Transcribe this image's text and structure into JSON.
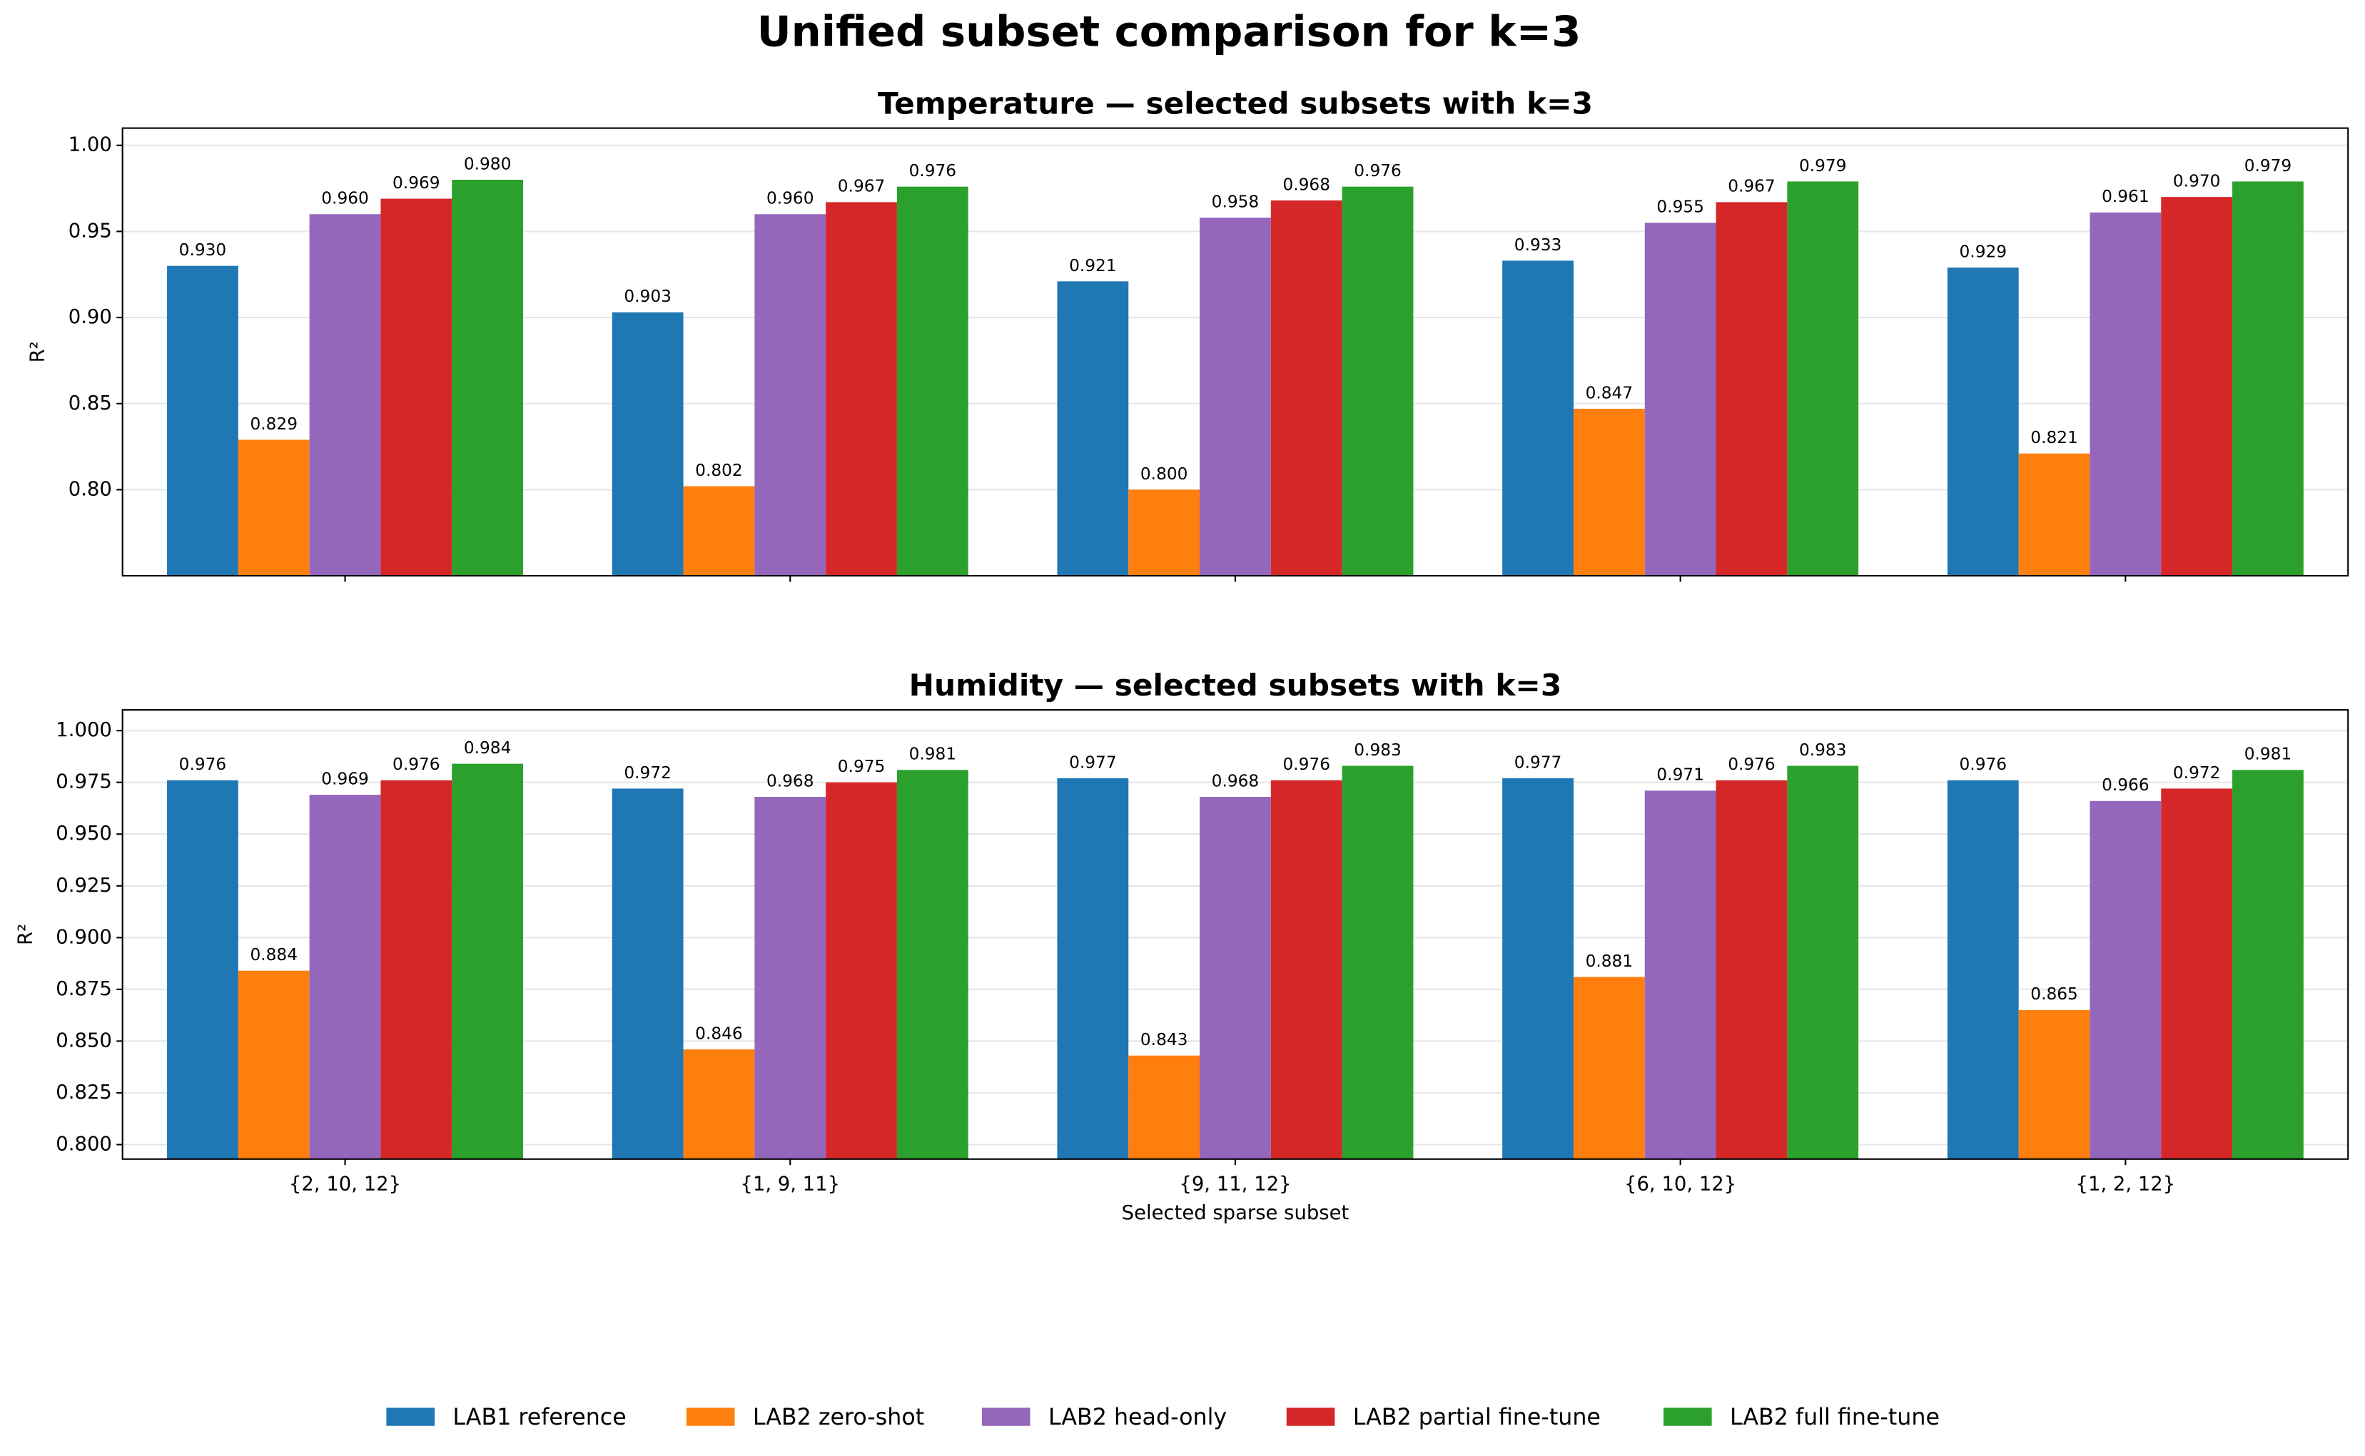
{
  "title": "Unified subset comparison for k=3",
  "chart_data": [
    {
      "type": "bar",
      "title": "Temperature — selected subsets with k=3",
      "ylabel": "R²",
      "categories": [
        null,
        null,
        null,
        null,
        null
      ],
      "ylim": [
        0.75,
        1.01
      ],
      "yticks": [
        {
          "value": 0.8,
          "label": "0.80"
        },
        {
          "value": 0.85,
          "label": "0.85"
        },
        {
          "value": 0.9,
          "label": "0.90"
        },
        {
          "value": 0.95,
          "label": "0.95"
        },
        {
          "value": 1.0,
          "label": "1.00"
        }
      ],
      "grid": true,
      "legend": "lower center",
      "series": [
        {
          "name": "LAB1 reference",
          "color": "#1f77b4",
          "values": [
            0.93,
            0.903,
            0.921,
            0.933,
            0.929
          ],
          "value_labels": [
            "0.930",
            "0.903",
            "0.921",
            "0.933",
            "0.929"
          ]
        },
        {
          "name": "LAB2 zero-shot",
          "color": "#ff7f0e",
          "values": [
            0.829,
            0.802,
            0.8,
            0.847,
            0.821
          ],
          "value_labels": [
            "0.829",
            "0.802",
            "0.800",
            "0.847",
            "0.821"
          ]
        },
        {
          "name": "LAB2 head-only",
          "color": "#9467bd",
          "values": [
            0.96,
            0.96,
            0.958,
            0.955,
            0.961
          ],
          "value_labels": [
            "0.960",
            "0.960",
            "0.958",
            "0.955",
            "0.961"
          ]
        },
        {
          "name": "LAB2 partial fine-tune",
          "color": "#d62728",
          "values": [
            0.969,
            0.967,
            0.968,
            0.967,
            0.97
          ],
          "value_labels": [
            "0.969",
            "0.967",
            "0.968",
            "0.967",
            "0.970"
          ]
        },
        {
          "name": "LAB2 full fine-tune",
          "color": "#2ca02c",
          "values": [
            0.98,
            0.976,
            0.976,
            0.979,
            0.979
          ],
          "value_labels": [
            "0.980",
            "0.976",
            "0.976",
            "0.979",
            "0.979"
          ]
        }
      ]
    },
    {
      "type": "bar",
      "title": "Humidity — selected subsets with k=3",
      "ylabel": "R²",
      "xlabel": "Selected sparse subset",
      "categories": [
        "{2, 10, 12}",
        "{1, 9, 11}",
        "{9, 11, 12}",
        "{6, 10, 12}",
        "{1, 2, 12}"
      ],
      "ylim": [
        0.793,
        1.01
      ],
      "yticks": [
        {
          "value": 0.8,
          "label": "0.800"
        },
        {
          "value": 0.825,
          "label": "0.825"
        },
        {
          "value": 0.85,
          "label": "0.850"
        },
        {
          "value": 0.875,
          "label": "0.875"
        },
        {
          "value": 0.9,
          "label": "0.900"
        },
        {
          "value": 0.925,
          "label": "0.925"
        },
        {
          "value": 0.95,
          "label": "0.950"
        },
        {
          "value": 0.975,
          "label": "0.975"
        },
        {
          "value": 1.0,
          "label": "1.000"
        }
      ],
      "grid": true,
      "series": [
        {
          "name": "LAB1 reference",
          "color": "#1f77b4",
          "values": [
            0.976,
            0.972,
            0.977,
            0.977,
            0.976
          ],
          "value_labels": [
            "0.976",
            "0.972",
            "0.977",
            "0.977",
            "0.976"
          ]
        },
        {
          "name": "LAB2 zero-shot",
          "color": "#ff7f0e",
          "values": [
            0.884,
            0.846,
            0.843,
            0.881,
            0.865
          ],
          "value_labels": [
            "0.884",
            "0.846",
            "0.843",
            "0.881",
            "0.865"
          ]
        },
        {
          "name": "LAB2 head-only",
          "color": "#9467bd",
          "values": [
            0.969,
            0.968,
            0.968,
            0.971,
            0.966
          ],
          "value_labels": [
            "0.969",
            "0.968",
            "0.968",
            "0.971",
            "0.966"
          ]
        },
        {
          "name": "LAB2 partial fine-tune",
          "color": "#d62728",
          "values": [
            0.976,
            0.975,
            0.976,
            0.976,
            0.972
          ],
          "value_labels": [
            "0.976",
            "0.975",
            "0.976",
            "0.976",
            "0.972"
          ]
        },
        {
          "name": "LAB2 full fine-tune",
          "color": "#2ca02c",
          "values": [
            0.984,
            0.981,
            0.983,
            0.983,
            0.981
          ],
          "value_labels": [
            "0.984",
            "0.981",
            "0.983",
            "0.983",
            "0.981"
          ]
        }
      ]
    }
  ]
}
